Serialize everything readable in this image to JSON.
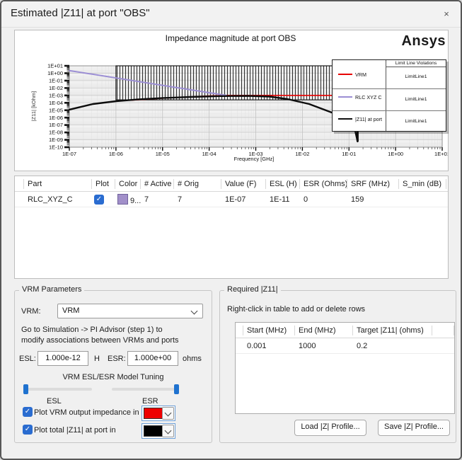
{
  "window": {
    "title": "Estimated |Z11| at port \"OBS\"",
    "close_label": "×"
  },
  "icons": {
    "check": "✓"
  },
  "chart": {
    "title": "Impedance magnitude at port OBS",
    "brand": "Ansys",
    "y_label": "|Z11| [kOhm]",
    "x_label": "Frequency [GHz]",
    "y_ticks": [
      "1E+01",
      "1E+00",
      "1E-01",
      "1E-02",
      "1E-03",
      "1E-04",
      "1E-05",
      "1E-06",
      "1E-07",
      "1E-08",
      "1E-09",
      "1E-10"
    ],
    "x_ticks": [
      "1E-07",
      "1E-06",
      "1E-05",
      "1E-04",
      "1E-03",
      "1E-02",
      "1E-01",
      "1E+00",
      "1E+01"
    ],
    "legend": {
      "header": "Limit Line Violations",
      "rows": [
        {
          "name": "VRM",
          "color": "#e60000",
          "violation": "LimitLine1"
        },
        {
          "name": "RLC  XYZ  C",
          "color": "#9b8ed4",
          "violation": "LimitLine1"
        },
        {
          "name": "|Z11| at port",
          "color": "#111111",
          "violation": "LimitLine1"
        }
      ]
    }
  },
  "chart_data": {
    "type": "line",
    "x_scale": "log",
    "y_scale": "log",
    "xlim": [
      1e-07,
      10
    ],
    "ylim": [
      1e-10,
      10
    ],
    "xlabel": "Frequency [GHz]",
    "ylabel": "|Z11| [kOhm]",
    "limit_region": {
      "x_start": 1e-06,
      "x_end": 10,
      "y_bottom": 0.00025,
      "y_top": 10
    },
    "series": [
      {
        "name": "VRM",
        "color": "#e60000",
        "width": 1.6,
        "x": [
          2e-06,
          1e-05,
          0.0001,
          0.00023,
          10
        ],
        "y": [
          0.00022,
          0.00042,
          0.00085,
          0.001,
          0.001
        ]
      },
      {
        "name": "RLC_XYZ_C",
        "color": "#9b8ed4",
        "width": 2,
        "x": [
          1e-07,
          0.00023
        ],
        "y": [
          2.3,
          0.001
        ]
      },
      {
        "name": "|Z11| at port",
        "color": "#0d0d0d",
        "width": 2.4,
        "x": [
          1e-07,
          3.2e-07,
          1e-06,
          3e-06,
          1.04e-05,
          4e-05,
          0.00017,
          0.00069,
          0.002,
          0.0048,
          0.014,
          0.047,
          0.094,
          0.134,
          0.153
        ],
        "y": [
          1.2e-05,
          6.8e-05,
          0.000165,
          0.00029,
          0.00045,
          0.00062,
          0.0008,
          0.00086,
          0.00069,
          0.00032,
          6.8e-05,
          3.9e-06,
          3.5e-07,
          2.5e-08,
          6e-10
        ]
      }
    ]
  },
  "parts_table": {
    "columns": [
      "Part",
      "Plot",
      "Color",
      "# Active",
      "# Orig",
      "Value (F)",
      "ESL (H)",
      "ESR (Ohms)",
      "SRF (MHz)",
      "S_min (dB)"
    ],
    "rows": [
      {
        "part": "RLC_XYZ_C",
        "plot_checked": true,
        "color": "#a18fc9",
        "color_label": "9...",
        "active": "7",
        "orig": "7",
        "value": "1E-07",
        "esl": "1E-11",
        "esr": "0",
        "srf": "159",
        "s_min": ""
      }
    ]
  },
  "vrm": {
    "group_label": "VRM Parameters",
    "vrm_label": "VRM:",
    "vrm_value": "VRM",
    "note_line1": "Go to Simulation -> PI Advisor (step 1) to",
    "note_line2": "modify associations between VRMs and ports",
    "esl_label": "ESL:",
    "esl_value": "1.000e-12",
    "esl_unit": "H",
    "esr_label": "ESR:",
    "esr_value": "1.000e+00",
    "esr_unit": "ohms",
    "tuning_title": "VRM ESL/ESR Model Tuning",
    "esl_slider_label": "ESL",
    "esr_slider_label": "ESR",
    "plot_rows": [
      {
        "label": "Plot VRM output impedance in",
        "checked": true,
        "color": "#ee0000"
      },
      {
        "label": "Plot total  |Z11|  at port in",
        "checked": true,
        "color": "#000000"
      }
    ]
  },
  "required": {
    "group_label": "Required |Z11|",
    "hint": "Right-click in table to add or delete rows",
    "table": {
      "columns": [
        "Start (MHz)",
        "End (MHz)",
        "Target |Z11| (ohms)"
      ],
      "rows": [
        [
          "0.001",
          "1000",
          "0.2"
        ]
      ]
    },
    "load_button": "Load |Z| Profile...",
    "save_button": "Save |Z| Profile..."
  }
}
